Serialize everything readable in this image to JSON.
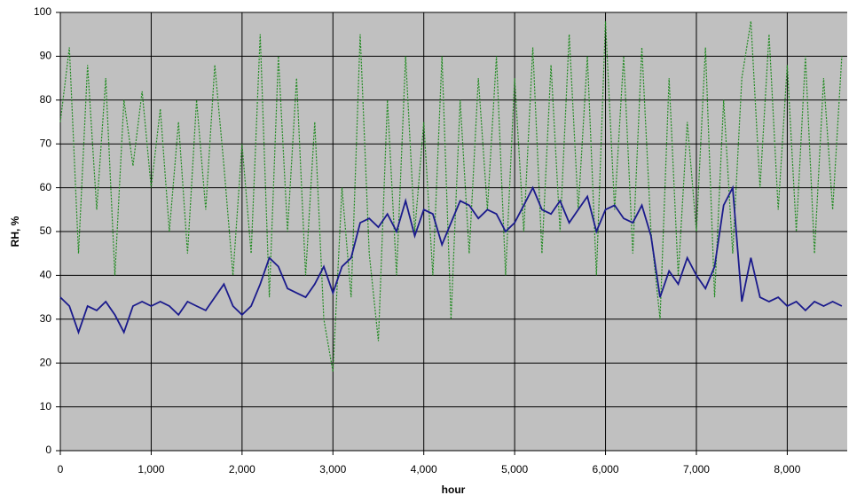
{
  "chart_data": {
    "type": "line",
    "x_label": "hour",
    "y_label": "RH, %",
    "x": [
      0,
      100,
      200,
      300,
      400,
      500,
      600,
      700,
      800,
      900,
      1000,
      1100,
      1200,
      1300,
      1400,
      1500,
      1600,
      1700,
      1800,
      1900,
      2000,
      2100,
      2200,
      2300,
      2400,
      2500,
      2600,
      2700,
      2800,
      2900,
      3000,
      3100,
      3200,
      3300,
      3400,
      3500,
      3600,
      3700,
      3800,
      3900,
      4000,
      4100,
      4200,
      4300,
      4400,
      4500,
      4600,
      4700,
      4800,
      4900,
      5000,
      5100,
      5200,
      5300,
      5400,
      5500,
      5600,
      5700,
      5800,
      5900,
      6000,
      6100,
      6200,
      6300,
      6400,
      6500,
      6600,
      6700,
      6800,
      6900,
      7000,
      7100,
      7200,
      7300,
      7400,
      7500,
      7600,
      7700,
      7800,
      7900,
      8000,
      8100,
      8200,
      8300,
      8400,
      8500,
      8600
    ],
    "series": [
      {
        "color": "#228b22",
        "line_style": "dotted",
        "values": [
          75,
          92,
          45,
          88,
          55,
          85,
          40,
          80,
          65,
          82,
          60,
          78,
          50,
          75,
          45,
          80,
          55,
          88,
          65,
          40,
          70,
          45,
          95,
          35,
          90,
          50,
          85,
          40,
          75,
          30,
          18,
          60,
          35,
          95,
          45,
          25,
          80,
          40,
          90,
          50,
          75,
          40,
          90,
          30,
          80,
          45,
          85,
          55,
          90,
          40,
          85,
          50,
          92,
          45,
          88,
          50,
          95,
          55,
          90,
          40,
          98,
          55,
          90,
          45,
          92,
          50,
          30,
          85,
          40,
          75,
          50,
          92,
          35,
          80,
          45,
          85,
          98,
          60,
          95,
          55,
          88,
          50,
          90,
          45,
          85,
          55,
          90
        ]
      },
      {
        "color": "#1a1a8c",
        "line_style": "solid",
        "values": [
          35,
          33,
          27,
          33,
          32,
          34,
          31,
          27,
          33,
          34,
          33,
          34,
          33,
          31,
          34,
          33,
          32,
          35,
          38,
          33,
          31,
          33,
          38,
          44,
          42,
          37,
          36,
          35,
          38,
          42,
          36,
          42,
          44,
          52,
          53,
          51,
          54,
          50,
          57,
          49,
          55,
          54,
          47,
          52,
          57,
          56,
          53,
          55,
          54,
          50,
          52,
          56,
          60,
          55,
          54,
          57,
          52,
          55,
          58,
          50,
          55,
          56,
          53,
          52,
          56,
          49,
          35,
          41,
          38,
          44,
          40,
          37,
          42,
          56,
          60,
          34,
          44,
          35,
          34,
          35,
          33,
          34,
          32,
          34,
          33,
          34,
          33
        ]
      }
    ],
    "xlim": [
      0,
      8660
    ],
    "xticks": [
      0,
      {
        "value": 1000,
        "label": "1,000"
      },
      {
        "value": 2000,
        "label": "2,000"
      },
      {
        "value": 3000,
        "label": "3,000"
      },
      {
        "value": 4000,
        "label": "4,000"
      },
      {
        "value": 5000,
        "label": "5,000"
      },
      {
        "value": 6000,
        "label": "6,000"
      },
      {
        "value": 7000,
        "label": "7,000"
      },
      {
        "value": 8000,
        "label": "8,000"
      }
    ],
    "ylim": [
      0,
      100
    ],
    "yticks": [
      0,
      10,
      20,
      30,
      40,
      50,
      60,
      70,
      80,
      90,
      100
    ],
    "grid": true
  }
}
